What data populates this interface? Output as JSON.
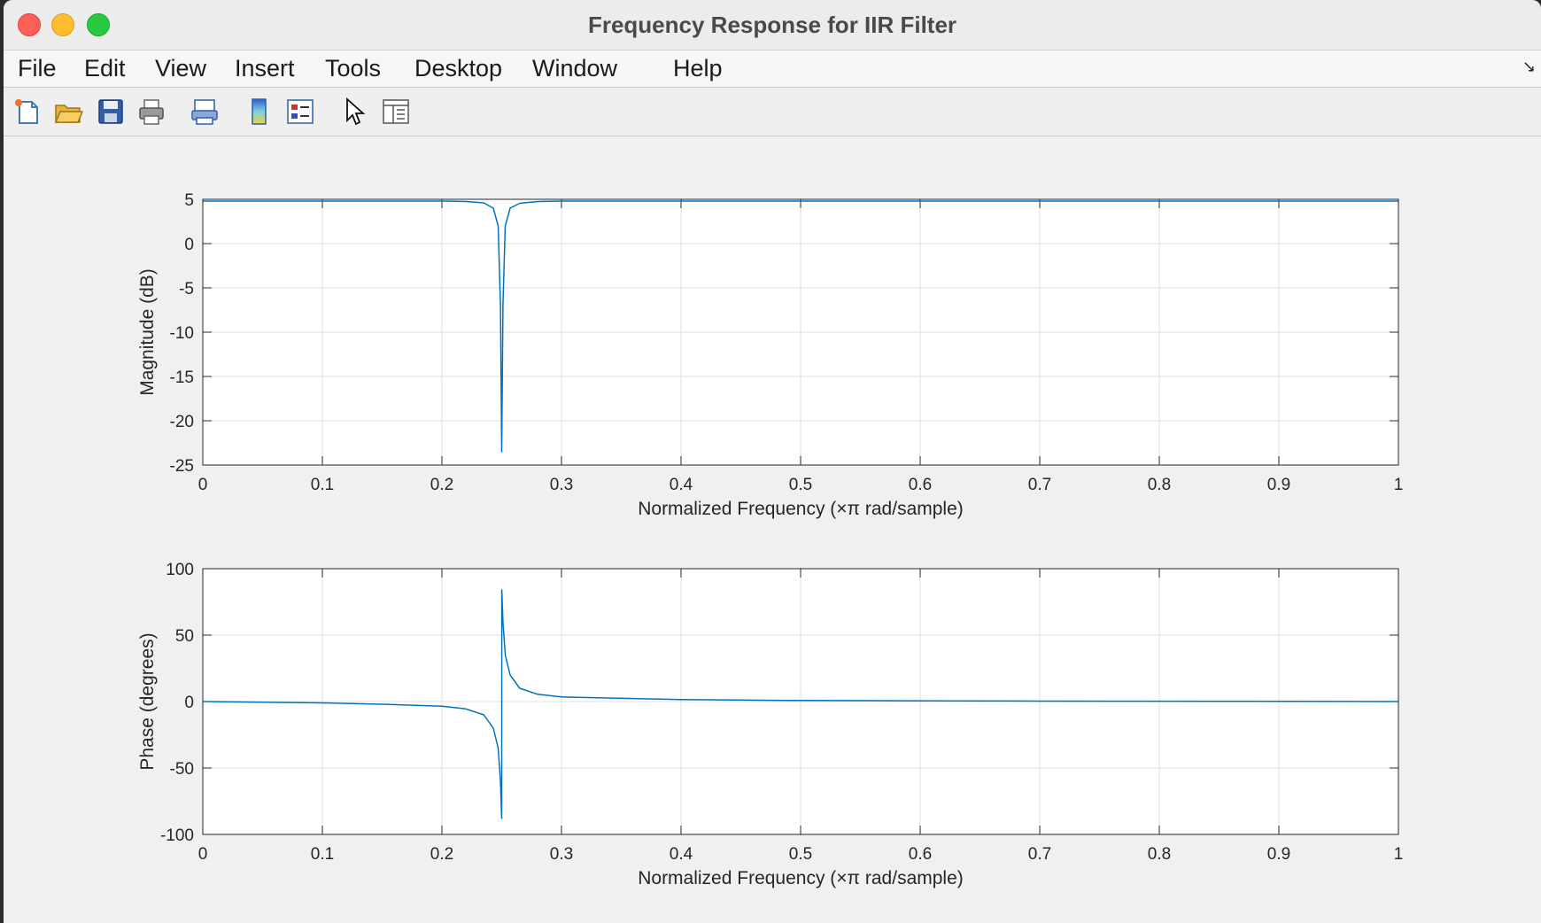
{
  "window": {
    "title": "Frequency Response for IIR Filter"
  },
  "menu": [
    "File",
    "Edit",
    "View",
    "Insert",
    "Tools",
    "Desktop",
    "Window",
    "Help"
  ],
  "toolbar": [
    "new-figure",
    "open-file",
    "save",
    "print",
    "link-plot",
    "colorbar",
    "legend",
    "edit-plot-pointer",
    "property-inspector"
  ],
  "colors": {
    "line": "#0072bd",
    "grid": "#dfdfdf",
    "axes_bg": "#ffffff"
  },
  "chart_data": [
    {
      "type": "line",
      "xlabel": "Normalized Frequency  (×π rad/sample)",
      "ylabel": "Magnitude (dB)",
      "xlim": [
        0,
        1
      ],
      "ylim": [
        -25,
        5
      ],
      "xticks": [
        "0",
        "0.1",
        "0.2",
        "0.3",
        "0.4",
        "0.5",
        "0.6",
        "0.7",
        "0.8",
        "0.9",
        "1"
      ],
      "yticks": [
        "5",
        "0",
        "-5",
        "-10",
        "-15",
        "-20",
        "-25"
      ],
      "grid": true,
      "series": [
        {
          "x": [
            0,
            0.1,
            0.2,
            0.22,
            0.235,
            0.243,
            0.247,
            0.249,
            0.25,
            0.251,
            0.253,
            0.257,
            0.265,
            0.28,
            0.3,
            0.5,
            1.0
          ],
          "y": [
            4.8,
            4.8,
            4.8,
            4.75,
            4.6,
            4.0,
            2.0,
            -7.0,
            -23.5,
            -7.0,
            2.0,
            4.0,
            4.55,
            4.75,
            4.8,
            4.8,
            4.8
          ]
        }
      ]
    },
    {
      "type": "line",
      "xlabel": "Normalized Frequency  (×π rad/sample)",
      "ylabel": "Phase (degrees)",
      "xlim": [
        0,
        1
      ],
      "ylim": [
        -100,
        100
      ],
      "xticks": [
        "0",
        "0.1",
        "0.2",
        "0.3",
        "0.4",
        "0.5",
        "0.6",
        "0.7",
        "0.8",
        "0.9",
        "1"
      ],
      "yticks": [
        "100",
        "50",
        "0",
        "-50",
        "-100"
      ],
      "grid": true,
      "series": [
        {
          "x": [
            0,
            0.1,
            0.15,
            0.2,
            0.22,
            0.235,
            0.243,
            0.247,
            0.249,
            0.25,
            0.2501,
            0.251,
            0.253,
            0.257,
            0.265,
            0.28,
            0.3,
            0.4,
            0.5,
            0.7,
            1.0
          ],
          "y": [
            0,
            -1.0,
            -2.0,
            -3.5,
            -5.5,
            -10,
            -20,
            -35,
            -60,
            -88,
            84,
            60,
            35,
            20,
            10,
            5.5,
            3.5,
            1.5,
            0.8,
            0.3,
            0
          ]
        }
      ]
    }
  ]
}
